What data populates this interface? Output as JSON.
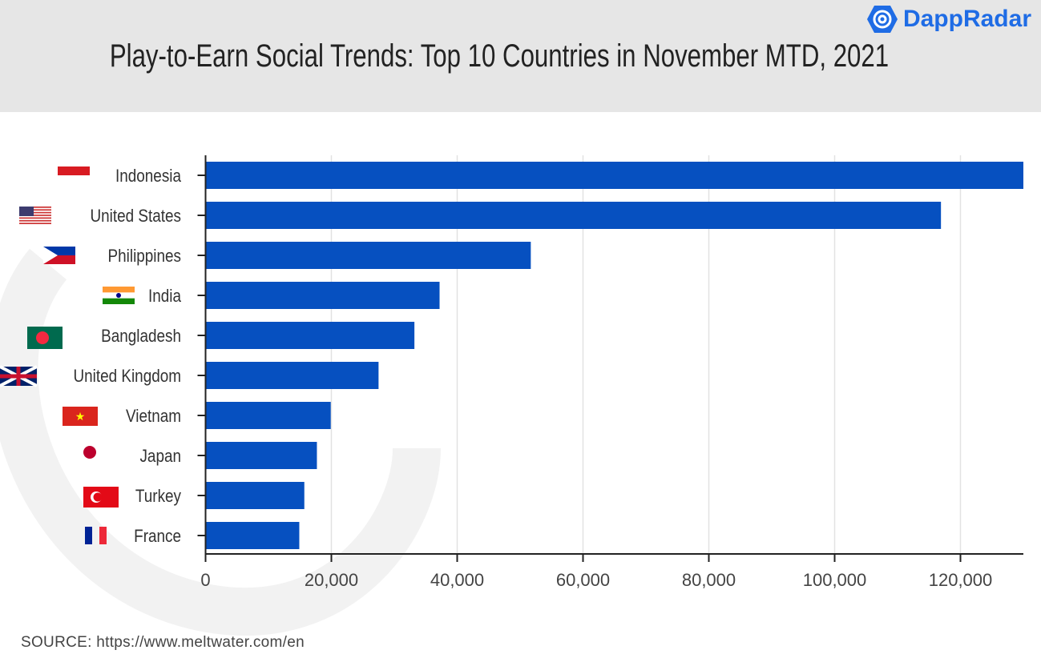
{
  "header": {
    "title": "Play-to-Earn Social Trends: Top 10 Countries in November MTD, 2021",
    "logo_text": "DappRadar"
  },
  "source": "SOURCE: https://www.meltwater.com/en",
  "colors": {
    "bar": "#0650c0",
    "brand": "#1f6ce5",
    "header_bg": "#e6e6e6"
  },
  "chart_data": {
    "type": "bar",
    "orientation": "horizontal",
    "title": "Play-to-Earn Social Trends: Top 10 Countries in November MTD, 2021",
    "categories": [
      "Indonesia",
      "United States",
      "Philippines",
      "India",
      "Bangladesh",
      "United Kingdom",
      "Vietnam",
      "Japan",
      "Turkey",
      "France"
    ],
    "values": [
      130500,
      116900,
      51700,
      37200,
      33200,
      27500,
      19900,
      17700,
      15700,
      14900
    ],
    "xlim": [
      0,
      130000
    ],
    "xticks": [
      0,
      20000,
      40000,
      60000,
      80000,
      100000,
      120000
    ],
    "xtick_labels": [
      "0",
      "20,000",
      "40,000",
      "60,000",
      "80,000",
      "100,000",
      "120,000"
    ],
    "grid": "vertical",
    "flag_icons": [
      "indonesia-flag",
      "us-flag",
      "philippines-flag",
      "india-flag",
      "bangladesh-flag",
      "uk-flag",
      "vietnam-flag",
      "japan-flag",
      "turkey-flag",
      "france-flag"
    ]
  }
}
